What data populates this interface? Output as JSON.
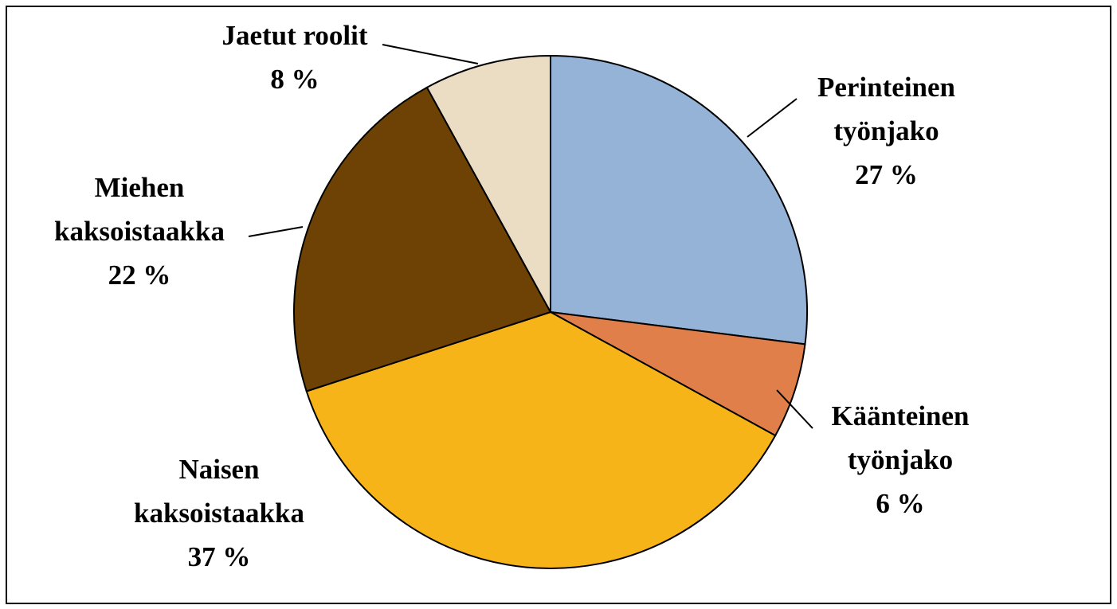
{
  "chart_data": {
    "type": "pie",
    "categories": [
      "Perinteinen työnjako",
      "Käänteinen työnjako",
      "Naisen kaksoistaakka",
      "Miehen kaksoistaakka",
      "Jaetut roolit"
    ],
    "values": [
      27,
      6,
      37,
      22,
      8
    ],
    "value_labels": [
      "27 %",
      "6 %",
      "37 %",
      "22 %",
      "8 %"
    ],
    "colors": [
      "#95b3d7",
      "#e07f4a",
      "#f6b418",
      "#6e4105",
      "#ebdcc4"
    ]
  }
}
